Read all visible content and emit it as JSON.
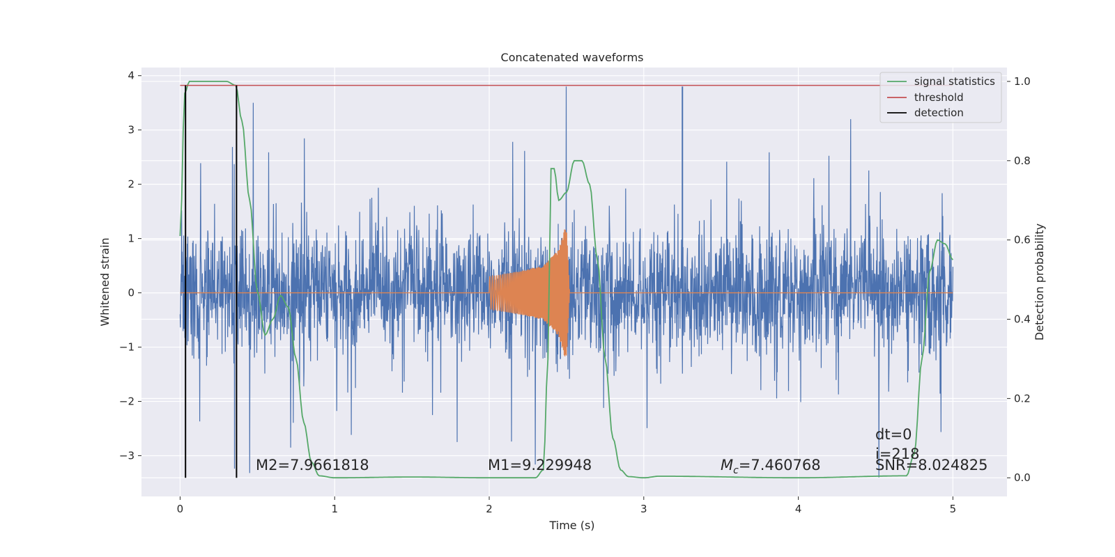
{
  "chart_data": {
    "type": "line",
    "title": "Concatenated waveforms",
    "xlabel": "Time (s)",
    "ylabel": "Whitened strain",
    "y2label": "Detection probability",
    "xlim": [
      -0.25,
      5.35
    ],
    "ylim": [
      -3.75,
      4.15
    ],
    "y2lim": [
      -0.047,
      1.035
    ],
    "xticks": [
      0,
      1,
      2,
      3,
      4,
      5
    ],
    "yticks": [
      -3,
      -2,
      -1,
      0,
      1,
      2,
      3,
      4
    ],
    "y2ticks": [
      0.0,
      0.2,
      0.4,
      0.6,
      0.8,
      1.0
    ],
    "xtick_labels": [
      "0",
      "1",
      "2",
      "3",
      "4",
      "5"
    ],
    "ytick_labels": [
      "−3",
      "−2",
      "−1",
      "0",
      "1",
      "2",
      "3",
      "4"
    ],
    "y2tick_labels": [
      "0.0",
      "0.2",
      "0.4",
      "0.6",
      "0.8",
      "1.0"
    ],
    "grid": true,
    "legend_position": "top-right",
    "colors": {
      "strain": "#4c72b0",
      "template": "#dd8452",
      "signal_statistics": "#55a868",
      "threshold": "#c44e52",
      "detection": "#000000",
      "background": "#eaeaf2",
      "grid": "#ffffff"
    },
    "series": [
      {
        "name": "",
        "axis": "left",
        "description_values": "whitened strain noise, x from 0 to 5 s, amplitude mostly within ±2.5, peaks to 3.8 near t=3.25",
        "x_range": [
          0,
          5
        ],
        "y_range": [
          -3.4,
          3.8
        ]
      },
      {
        "name": "",
        "axis": "left",
        "x_range": [
          2.0,
          2.52
        ],
        "envelope": [
          [
            2.0,
            0.3
          ],
          [
            2.2,
            0.4
          ],
          [
            2.35,
            0.5
          ],
          [
            2.45,
            0.8
          ],
          [
            2.5,
            1.3
          ],
          [
            2.52,
            0.0
          ]
        ]
      },
      {
        "name": "signal statistics",
        "axis": "right",
        "x": [
          0.0,
          0.03,
          0.06,
          0.1,
          0.2,
          0.3,
          0.36,
          0.4,
          0.45,
          0.5,
          0.55,
          0.6,
          0.65,
          0.7,
          0.75,
          0.8,
          0.85,
          0.9,
          1.0,
          1.5,
          2.0,
          2.3,
          2.35,
          2.38,
          2.4,
          2.42,
          2.45,
          2.5,
          2.55,
          2.6,
          2.65,
          2.7,
          2.75,
          2.8,
          2.85,
          2.9,
          3.0,
          3.1,
          4.0,
          4.7,
          4.75,
          4.8,
          4.85,
          4.9,
          4.95,
          5.0
        ],
        "values": [
          0.61,
          0.97,
          1.0,
          1.0,
          1.0,
          1.0,
          0.99,
          0.9,
          0.7,
          0.47,
          0.36,
          0.4,
          0.46,
          0.43,
          0.3,
          0.14,
          0.04,
          0.005,
          0.0,
          0.002,
          0.0,
          0.0,
          0.02,
          0.3,
          0.78,
          0.78,
          0.7,
          0.72,
          0.8,
          0.8,
          0.74,
          0.55,
          0.3,
          0.1,
          0.02,
          0.003,
          0.0,
          0.004,
          0.0,
          0.005,
          0.06,
          0.3,
          0.52,
          0.6,
          0.59,
          0.55
        ]
      },
      {
        "name": "threshold",
        "axis": "right",
        "x": [
          0,
          5
        ],
        "values": [
          0.99,
          0.99
        ]
      },
      {
        "name": "detection",
        "axis": "right",
        "x": [
          0.035,
          0.365
        ],
        "values": [
          [
            0.0,
            0.99
          ],
          [
            0.0,
            0.99
          ]
        ]
      }
    ],
    "annotations": [
      {
        "text": "M2=7.9661818",
        "x": 0.5,
        "y": -3.3
      },
      {
        "text": "M1=9.229948",
        "x": 2.0,
        "y": -3.3
      },
      {
        "text": "=7.460768",
        "math": "M_c",
        "x": 3.5,
        "y": -3.3
      },
      {
        "text": "SNR=8.024825",
        "x": 4.5,
        "y": -3.3
      },
      {
        "text": "i=218",
        "x": 4.5,
        "y": -2.95
      },
      {
        "text": "dt=0",
        "x": 4.5,
        "y": -2.6
      }
    ]
  }
}
